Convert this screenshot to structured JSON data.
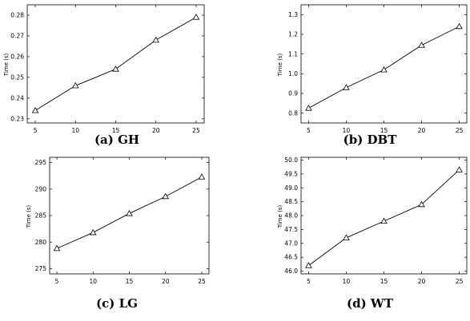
{
  "chart_data": [
    {
      "type": "line",
      "caption": "(a) GH",
      "ylabel": "Time (s)",
      "x": [
        5,
        10,
        15,
        20,
        25
      ],
      "y": [
        0.234,
        0.246,
        0.254,
        0.268,
        0.279
      ],
      "xticks": [
        "5",
        "10",
        "15",
        "20",
        "25"
      ],
      "yticks": [
        0.23,
        0.24,
        0.25,
        0.26,
        0.27,
        0.28
      ],
      "ytick_labels": [
        "0.23",
        "0.24",
        "0.25",
        "0.26",
        "0.27",
        "0.28"
      ],
      "xlim": [
        4,
        26
      ],
      "ylim": [
        0.228,
        0.285
      ],
      "marker": "triangle",
      "grid": false
    },
    {
      "type": "line",
      "caption": "(b) DBT",
      "ylabel": "Time (s)",
      "x": [
        5,
        10,
        15,
        20,
        25
      ],
      "y": [
        0.825,
        0.93,
        1.02,
        1.145,
        1.24
      ],
      "xticks": [
        "5",
        "10",
        "15",
        "20",
        "25"
      ],
      "yticks": [
        0.8,
        0.9,
        1.0,
        1.1,
        1.2,
        1.3
      ],
      "ytick_labels": [
        "0.8",
        "0.9",
        "1.0",
        "1.1",
        "1.2",
        "1.3"
      ],
      "xlim": [
        4,
        26
      ],
      "ylim": [
        0.75,
        1.35
      ],
      "marker": "triangle",
      "grid": false
    },
    {
      "type": "line",
      "caption": "(c) LG",
      "ylabel": "Time (s)",
      "x": [
        5,
        10,
        15,
        20,
        25
      ],
      "y": [
        278.8,
        281.8,
        285.4,
        288.6,
        292.3
      ],
      "xticks": [
        "5",
        "10",
        "15",
        "20",
        "25"
      ],
      "yticks": [
        275,
        280,
        285,
        290,
        295
      ],
      "ytick_labels": [
        "275",
        "280",
        "285",
        "290",
        "295"
      ],
      "xlim": [
        4,
        26
      ],
      "ylim": [
        274,
        296
      ],
      "marker": "triangle",
      "grid": false
    },
    {
      "type": "line",
      "caption": "(d) WT",
      "ylabel": "Time (s)",
      "x": [
        5,
        10,
        15,
        20,
        25
      ],
      "y": [
        46.2,
        47.2,
        47.8,
        48.4,
        49.65
      ],
      "xticks": [
        "5",
        "10",
        "15",
        "20",
        "25"
      ],
      "yticks": [
        46.0,
        46.5,
        47.0,
        47.5,
        48.0,
        48.5,
        49.0,
        49.5,
        50.0
      ],
      "ytick_labels": [
        "46.0",
        "46.5",
        "47.0",
        "47.5",
        "48.0",
        "48.5",
        "49.0",
        "49.5",
        "50.0"
      ],
      "xlim": [
        4,
        26
      ],
      "ylim": [
        45.9,
        50.1
      ],
      "marker": "triangle",
      "grid": false
    }
  ]
}
